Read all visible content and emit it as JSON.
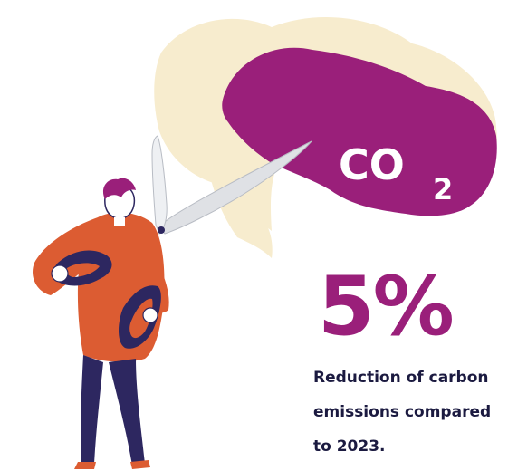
{
  "colors": {
    "brand_purple": "#9a1f7a",
    "cream": "#f7ecce",
    "shirt_orange": "#dc5c32",
    "navy": "#2d2760",
    "skin": "#ffffff",
    "text_dark": "#1b1a40"
  },
  "cloud": {
    "symbol": "CO",
    "subscript": "2"
  },
  "stat": {
    "value": "5%",
    "caption_lines": [
      "Reduction of carbon",
      "emissions compared",
      "to 2023."
    ]
  },
  "illustration": {
    "icon": "person-cutting-co2-cloud-with-scissors-icon"
  }
}
